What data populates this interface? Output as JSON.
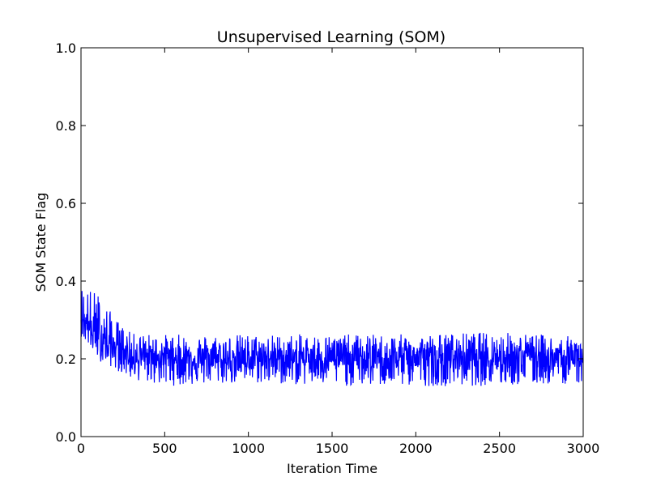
{
  "chart_data": {
    "type": "line",
    "title": "Unsupervised Learning (SOM)",
    "xlabel": "Iteration Time",
    "ylabel": "SOM State Flag",
    "xlim": [
      0,
      3000
    ],
    "ylim": [
      0.0,
      1.0
    ],
    "x_ticks": [
      "0",
      "500",
      "1000",
      "1500",
      "2000",
      "2500",
      "3000"
    ],
    "y_ticks": [
      "0.0",
      "0.2",
      "0.4",
      "0.6",
      "0.8",
      "1.0"
    ],
    "grid": false,
    "series_color": "#0000ff",
    "series": [
      {
        "x": [
          0,
          100,
          200,
          300,
          500,
          1000,
          1500,
          2000,
          2500,
          3000
        ],
        "mean": [
          0.3,
          0.26,
          0.23,
          0.21,
          0.2,
          0.2,
          0.2,
          0.2,
          0.2,
          0.2
        ],
        "upper": [
          0.43,
          0.42,
          0.34,
          0.29,
          0.29,
          0.29,
          0.29,
          0.29,
          0.3,
          0.28
        ],
        "lower": [
          0.24,
          0.17,
          0.15,
          0.12,
          0.1,
          0.11,
          0.1,
          0.1,
          0.1,
          0.11
        ]
      }
    ]
  }
}
